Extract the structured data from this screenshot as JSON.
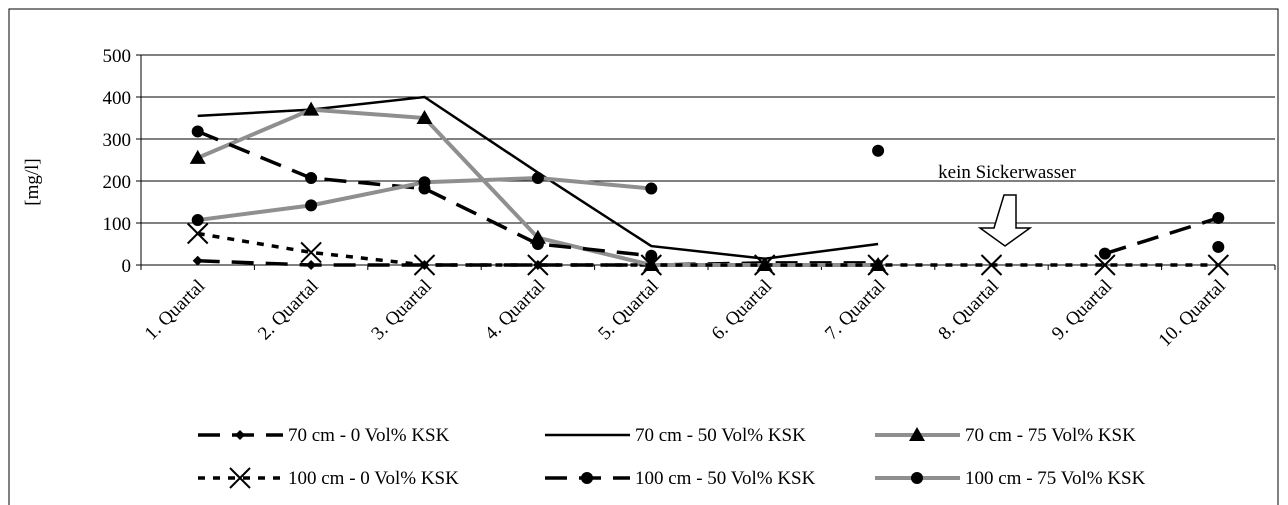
{
  "chart_data": {
    "type": "line",
    "ylabel": "[mg/l]",
    "ylim": [
      0,
      500
    ],
    "yticks": [
      0,
      100,
      200,
      300,
      400,
      500
    ],
    "grid": "horizontal",
    "categories": [
      "1. Quartal",
      "2. Quartal",
      "3. Quartal",
      "4. Quartal",
      "5. Quartal",
      "6. Quartal",
      "7. Quartal",
      "8. Quartal",
      "9. Quartal",
      "10. Quartal"
    ],
    "annotation": "kein Sickerwasser",
    "legend_position": "bottom",
    "series": [
      {
        "name": "70 cm - 0 Vol% KSK",
        "style": "long-dash",
        "marker": "diamond",
        "values": [
          10,
          0,
          0,
          0,
          0,
          5,
          5,
          null,
          null,
          null
        ]
      },
      {
        "name": "70 cm - 50 Vol% KSK",
        "style": "solid",
        "marker": "none",
        "values": [
          355,
          370,
          400,
          220,
          45,
          15,
          50,
          null,
          null,
          null
        ]
      },
      {
        "name": "70 cm - 75 Vol% KSK",
        "style": "gray",
        "marker": "triangle",
        "values": [
          255,
          370,
          350,
          65,
          0,
          0,
          0,
          null,
          null,
          null
        ]
      },
      {
        "name": "100 cm - 0 Vol% KSK",
        "style": "short-dash",
        "marker": "x",
        "values": [
          75,
          30,
          0,
          0,
          0,
          0,
          0,
          0,
          0,
          0
        ]
      },
      {
        "name": "100 cm - 50 Vol% KSK",
        "style": "long-dash",
        "marker": "circle",
        "values": [
          318,
          207,
          182,
          50,
          22,
          null,
          272,
          null,
          27,
          112
        ]
      },
      {
        "name": "100 cm - 75 Vol% KSK",
        "style": "gray",
        "marker": "circle",
        "values": [
          107,
          142,
          197,
          207,
          182,
          null,
          null,
          null,
          null,
          43
        ]
      }
    ]
  }
}
